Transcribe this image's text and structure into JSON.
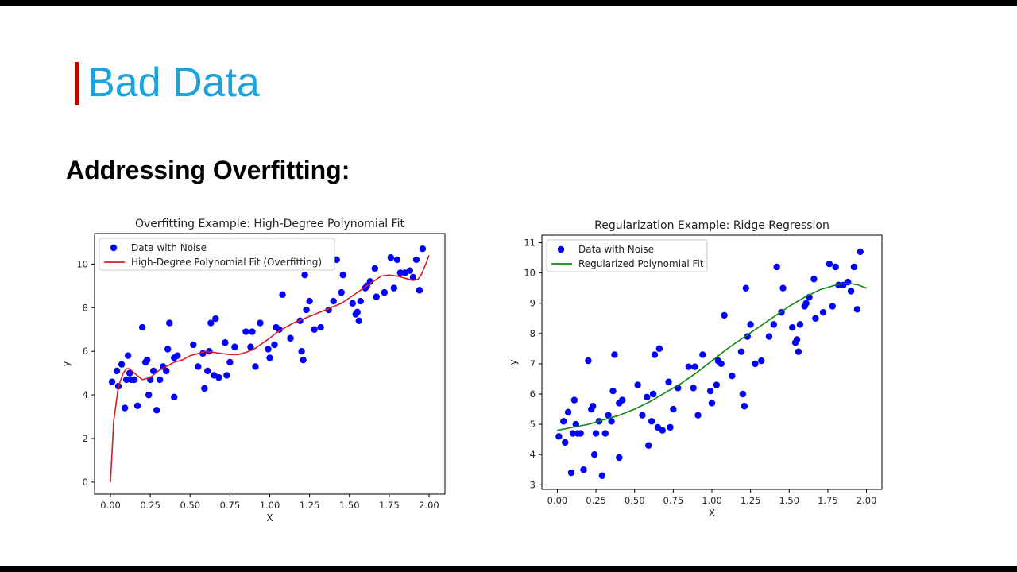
{
  "slide": {
    "title": "Bad Data",
    "subtitle": "Addressing Overfitting:",
    "colors": {
      "title": "#1aa3dc",
      "accent_bar": "#c00000"
    }
  },
  "chart_data": [
    {
      "type": "scatter",
      "title": "Overfitting Example: High-Degree Polynomial Fit",
      "xlabel": "X",
      "ylabel": "y",
      "xlim": [
        -0.1,
        2.1
      ],
      "ylim": [
        -0.55,
        11.4
      ],
      "xticks": [
        "0.00",
        "0.25",
        "0.50",
        "0.75",
        "1.00",
        "1.25",
        "1.50",
        "1.75",
        "2.00"
      ],
      "yticks": [
        "0",
        "2",
        "4",
        "6",
        "8",
        "10"
      ],
      "legend": "top-left",
      "series": [
        {
          "name": "Data with Noise",
          "kind": "scatter",
          "color": "#0000ff",
          "x": [
            0.01,
            0.04,
            0.05,
            0.07,
            0.09,
            0.1,
            0.11,
            0.12,
            0.13,
            0.15,
            0.17,
            0.2,
            0.22,
            0.23,
            0.24,
            0.25,
            0.27,
            0.29,
            0.31,
            0.33,
            0.35,
            0.36,
            0.37,
            0.4,
            0.4,
            0.42,
            0.52,
            0.55,
            0.58,
            0.59,
            0.61,
            0.62,
            0.63,
            0.65,
            0.66,
            0.68,
            0.72,
            0.73,
            0.75,
            0.78,
            0.85,
            0.88,
            0.89,
            0.91,
            0.94,
            0.99,
            1.0,
            1.03,
            1.04,
            1.06,
            1.08,
            1.13,
            1.19,
            1.2,
            1.21,
            1.22,
            1.23,
            1.25,
            1.28,
            1.32,
            1.37,
            1.4,
            1.42,
            1.45,
            1.46,
            1.52,
            1.54,
            1.55,
            1.56,
            1.57,
            1.6,
            1.61,
            1.63,
            1.66,
            1.67,
            1.72,
            1.76,
            1.78,
            1.8,
            1.82,
            1.85,
            1.88,
            1.9,
            1.92,
            1.94,
            1.96
          ],
          "y": [
            4.6,
            5.1,
            4.4,
            5.4,
            3.4,
            4.7,
            5.8,
            5.0,
            4.7,
            4.7,
            3.5,
            7.1,
            5.5,
            5.6,
            4.0,
            4.7,
            5.1,
            3.3,
            4.7,
            5.3,
            5.1,
            6.1,
            7.3,
            3.9,
            5.7,
            5.8,
            6.3,
            5.3,
            5.9,
            4.3,
            5.1,
            6.0,
            7.3,
            4.9,
            7.5,
            4.8,
            6.4,
            4.9,
            5.5,
            6.2,
            6.9,
            6.2,
            6.9,
            5.3,
            7.3,
            6.1,
            5.7,
            6.3,
            7.1,
            7.0,
            8.6,
            6.6,
            7.4,
            6.0,
            5.6,
            9.5,
            7.9,
            8.3,
            7.0,
            7.1,
            7.9,
            8.3,
            10.2,
            8.7,
            9.5,
            8.2,
            7.7,
            7.8,
            7.4,
            8.3,
            8.9,
            9.0,
            9.2,
            9.8,
            8.5,
            8.7,
            10.3,
            8.9,
            10.2,
            9.6,
            9.6,
            9.7,
            9.4,
            10.2,
            8.8,
            10.7
          ]
        },
        {
          "name": "High-Degree Polynomial Fit (Overfitting)",
          "kind": "line",
          "color": "#d62020",
          "x": [
            0.0,
            0.02,
            0.05,
            0.08,
            0.1,
            0.12,
            0.15,
            0.2,
            0.25,
            0.3,
            0.35,
            0.4,
            0.45,
            0.5,
            0.55,
            0.6,
            0.65,
            0.7,
            0.75,
            0.8,
            0.85,
            0.9,
            0.95,
            1.0,
            1.05,
            1.1,
            1.15,
            1.2,
            1.25,
            1.3,
            1.35,
            1.4,
            1.45,
            1.5,
            1.55,
            1.6,
            1.65,
            1.7,
            1.75,
            1.8,
            1.85,
            1.9,
            1.93,
            1.95,
            1.98,
            2.0
          ],
          "y": [
            0.0,
            2.8,
            4.4,
            5.0,
            5.2,
            5.2,
            5.0,
            4.7,
            4.8,
            5.1,
            5.3,
            5.5,
            5.6,
            5.8,
            5.9,
            6.0,
            5.95,
            5.9,
            5.85,
            5.85,
            5.95,
            6.1,
            6.35,
            6.6,
            6.9,
            7.1,
            7.3,
            7.45,
            7.6,
            7.75,
            7.9,
            8.05,
            8.2,
            8.45,
            8.7,
            8.95,
            9.2,
            9.45,
            9.5,
            9.45,
            9.35,
            9.25,
            9.3,
            9.5,
            10.0,
            10.4
          ]
        }
      ]
    },
    {
      "type": "scatter",
      "title": "Regularization Example: Ridge Regression",
      "xlabel": "X",
      "ylabel": "y",
      "xlim": [
        -0.1,
        2.1
      ],
      "ylim": [
        2.85,
        11.25
      ],
      "xticks": [
        "0.00",
        "0.25",
        "0.50",
        "0.75",
        "1.00",
        "1.25",
        "1.50",
        "1.75",
        "2.00"
      ],
      "yticks": [
        "3",
        "4",
        "5",
        "6",
        "7",
        "8",
        "9",
        "10",
        "11"
      ],
      "legend": "top-left",
      "series": [
        {
          "name": "Data with Noise",
          "kind": "scatter",
          "color": "#0000ff",
          "x": [
            0.01,
            0.04,
            0.05,
            0.07,
            0.09,
            0.1,
            0.11,
            0.12,
            0.13,
            0.15,
            0.17,
            0.2,
            0.22,
            0.23,
            0.24,
            0.25,
            0.27,
            0.29,
            0.31,
            0.33,
            0.35,
            0.36,
            0.37,
            0.4,
            0.4,
            0.42,
            0.52,
            0.55,
            0.58,
            0.59,
            0.61,
            0.62,
            0.63,
            0.65,
            0.66,
            0.68,
            0.72,
            0.73,
            0.75,
            0.78,
            0.85,
            0.88,
            0.89,
            0.91,
            0.94,
            0.99,
            1.0,
            1.03,
            1.04,
            1.06,
            1.08,
            1.13,
            1.19,
            1.2,
            1.21,
            1.22,
            1.23,
            1.25,
            1.28,
            1.32,
            1.37,
            1.4,
            1.42,
            1.45,
            1.46,
            1.52,
            1.54,
            1.55,
            1.56,
            1.57,
            1.6,
            1.61,
            1.63,
            1.66,
            1.67,
            1.72,
            1.76,
            1.78,
            1.8,
            1.82,
            1.85,
            1.88,
            1.9,
            1.92,
            1.94,
            1.96
          ],
          "y": [
            4.6,
            5.1,
            4.4,
            5.4,
            3.4,
            4.7,
            5.8,
            5.0,
            4.7,
            4.7,
            3.5,
            7.1,
            5.5,
            5.6,
            4.0,
            4.7,
            5.1,
            3.3,
            4.7,
            5.3,
            5.1,
            6.1,
            7.3,
            3.9,
            5.7,
            5.8,
            6.3,
            5.3,
            5.9,
            4.3,
            5.1,
            6.0,
            7.3,
            4.9,
            7.5,
            4.8,
            6.4,
            4.9,
            5.5,
            6.2,
            6.9,
            6.2,
            6.9,
            5.3,
            7.3,
            6.1,
            5.7,
            6.3,
            7.1,
            7.0,
            8.6,
            6.6,
            7.4,
            6.0,
            5.6,
            9.5,
            7.9,
            8.3,
            7.0,
            7.1,
            7.9,
            8.3,
            10.2,
            8.7,
            9.5,
            8.2,
            7.7,
            7.8,
            7.4,
            8.3,
            8.9,
            9.0,
            9.2,
            9.8,
            8.5,
            8.7,
            10.3,
            8.9,
            10.2,
            9.6,
            9.6,
            9.7,
            9.4,
            10.2,
            8.8,
            10.7
          ]
        },
        {
          "name": "Regularized Polynomial Fit",
          "kind": "line",
          "color": "#118811",
          "x": [
            0.0,
            0.1,
            0.2,
            0.3,
            0.4,
            0.5,
            0.6,
            0.7,
            0.8,
            0.9,
            1.0,
            1.1,
            1.2,
            1.3,
            1.4,
            1.5,
            1.6,
            1.7,
            1.8,
            1.85,
            1.9,
            1.95,
            2.0
          ],
          "y": [
            4.8,
            4.9,
            5.0,
            5.15,
            5.3,
            5.5,
            5.75,
            6.05,
            6.35,
            6.7,
            7.1,
            7.5,
            7.85,
            8.2,
            8.55,
            8.9,
            9.2,
            9.45,
            9.6,
            9.65,
            9.65,
            9.6,
            9.5
          ]
        }
      ]
    }
  ]
}
